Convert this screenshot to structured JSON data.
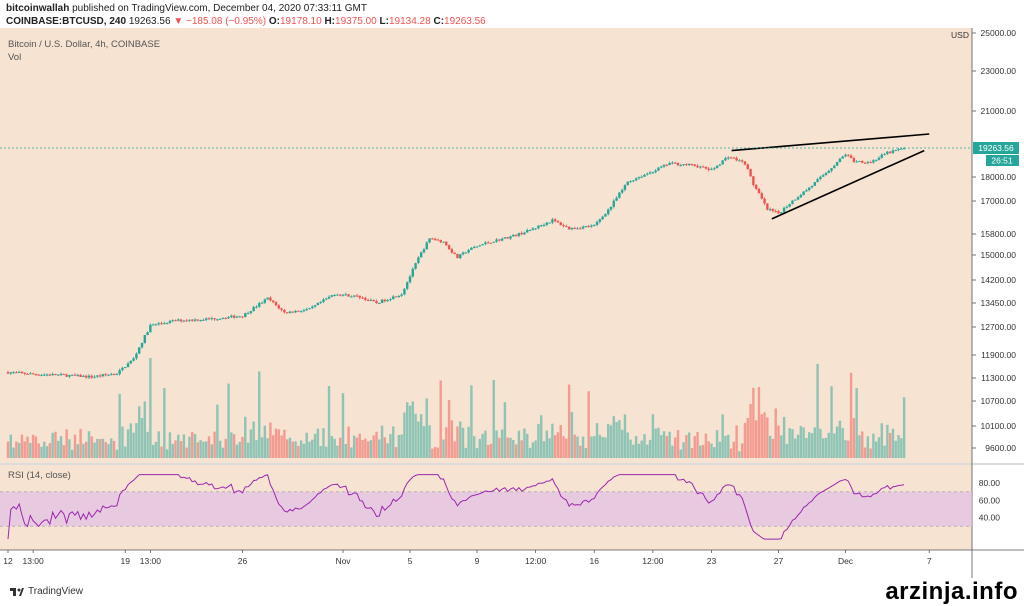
{
  "header": {
    "publisher": "bitcoinwallah",
    "published_text": "published on TradingView.com, December 04, 2020 07:33:11 GMT",
    "symbol": "COINBASE:BTCUSD, 240",
    "last": "19263.56",
    "change": "−185.08 (−0.95%)",
    "o_label": "O:",
    "o_value": "19178.10",
    "h_label": "H:",
    "h_value": "19375.00",
    "l_label": "L:",
    "l_value": "19134.28",
    "c_label": "C:",
    "c_value": "19263.56"
  },
  "panes": {
    "price_title": "Bitcoin / U.S. Dollar, 4h, COINBASE",
    "vol_title": "Vol",
    "rsi_title": "RSI (14, close)"
  },
  "price_axis": {
    "currency": "USD",
    "price_tag": "19263.56",
    "countdown": "26:51"
  },
  "footer": {
    "brand": "TradingView"
  },
  "watermark": "arzinja.info",
  "colors": {
    "bg": "#f6e3d1",
    "up": "#26a69a",
    "down": "#ef5350",
    "rsi": "#9c27b0",
    "rsi_band": "#e1bee7"
  },
  "chart_data": {
    "type": "candlestick",
    "price_ticks": [
      "25000.00",
      "23000.00",
      "21000.00",
      "19263.56",
      "18000.00",
      "17000.00",
      "15800.00",
      "15000.00",
      "14200.00",
      "13450.00",
      "12700.00",
      "11900.00",
      "11300.00",
      "10700.00",
      "10100.00",
      "9600.00"
    ],
    "price_tick_values": [
      25000,
      23000,
      21000,
      19263.56,
      18000,
      17000,
      15800,
      15000,
      14200,
      13450,
      12700,
      11900,
      11300,
      10700,
      10100,
      9600
    ],
    "rsi_ticks": [
      "80.00",
      "60.00",
      "40.00"
    ],
    "rsi_tick_values": [
      80,
      60,
      40
    ],
    "rsi_bands": [
      70,
      30
    ],
    "x_ticks": [
      "12",
      "13:00",
      "19",
      "13:00",
      "26",
      "Nov",
      "5",
      "9",
      "12:00",
      "16",
      "12:00",
      "23",
      "27",
      "Dec",
      "7"
    ],
    "x_tick_days": [
      0,
      1.5,
      7,
      8.5,
      14,
      20,
      24,
      28,
      31.5,
      35,
      38.5,
      42,
      46,
      50,
      55
    ],
    "close_anchors": [
      [
        0,
        11450
      ],
      [
        1.5,
        11400
      ],
      [
        3,
        11380
      ],
      [
        5,
        11330
      ],
      [
        6.5,
        11420
      ],
      [
        7.5,
        11800
      ],
      [
        8.5,
        12750
      ],
      [
        10,
        12900
      ],
      [
        12,
        12950
      ],
      [
        14,
        13050
      ],
      [
        15.5,
        13600
      ],
      [
        16.5,
        13150
      ],
      [
        18,
        13250
      ],
      [
        19.5,
        13750
      ],
      [
        21,
        13650
      ],
      [
        22,
        13450
      ],
      [
        23.5,
        13750
      ],
      [
        24.5,
        14900
      ],
      [
        25.2,
        15650
      ],
      [
        26,
        15500
      ],
      [
        26.8,
        14900
      ],
      [
        27.5,
        15200
      ],
      [
        28.5,
        15450
      ],
      [
        30,
        15700
      ],
      [
        31,
        15900
      ],
      [
        32.5,
        16300
      ],
      [
        33.5,
        16000
      ],
      [
        35,
        16100
      ],
      [
        36,
        16800
      ],
      [
        37,
        17800
      ],
      [
        38.5,
        18250
      ],
      [
        39.5,
        18600
      ],
      [
        41,
        18500
      ],
      [
        42,
        18300
      ],
      [
        43,
        18900
      ],
      [
        44,
        18600
      ],
      [
        44.5,
        17700
      ],
      [
        45.3,
        16700
      ],
      [
        46,
        16550
      ],
      [
        47,
        17100
      ],
      [
        48,
        17650
      ],
      [
        49,
        18300
      ],
      [
        50,
        19000
      ],
      [
        50.5,
        18700
      ],
      [
        51.5,
        18650
      ],
      [
        52.5,
        19050
      ],
      [
        53.5,
        19263.56
      ]
    ],
    "trendlines": [
      {
        "name": "upper",
        "from": [
          43.2,
          19150
        ],
        "to": [
          55,
          19920
        ]
      },
      {
        "name": "lower",
        "from": [
          45.6,
          16350
        ],
        "to": [
          54.7,
          19150
        ]
      }
    ]
  }
}
